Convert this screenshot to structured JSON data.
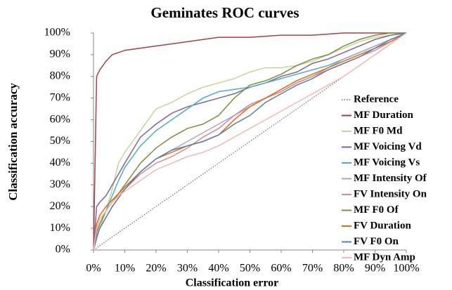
{
  "chart_data": {
    "type": "line",
    "title": "Geminates ROC curves",
    "x_label": "Classification error",
    "y_label": "Classification accuracy",
    "x": [
      0,
      1,
      2,
      4,
      6,
      8,
      10,
      15,
      20,
      25,
      30,
      35,
      40,
      45,
      50,
      55,
      60,
      65,
      70,
      75,
      80,
      85,
      90,
      95,
      100
    ],
    "xlim": [
      0,
      100
    ],
    "ylim": [
      0,
      100
    ],
    "xticks": [
      {
        "value": 0,
        "label": "0%"
      },
      {
        "value": 10,
        "label": "10%"
      },
      {
        "value": 20,
        "label": "20%"
      },
      {
        "value": 30,
        "label": "30%"
      },
      {
        "value": 40,
        "label": "40%"
      },
      {
        "value": 50,
        "label": "50%"
      },
      {
        "value": 60,
        "label": "60%"
      },
      {
        "value": 70,
        "label": "70%"
      },
      {
        "value": 80,
        "label": "80%"
      },
      {
        "value": 90,
        "label": "90%"
      },
      {
        "value": 100,
        "label": "100%"
      }
    ],
    "yticks": [
      {
        "value": 0,
        "label": "0%"
      },
      {
        "value": 10,
        "label": "10%"
      },
      {
        "value": 20,
        "label": "20%"
      },
      {
        "value": 30,
        "label": "30%"
      },
      {
        "value": 40,
        "label": "40%"
      },
      {
        "value": 50,
        "label": "50%"
      },
      {
        "value": 60,
        "label": "60%"
      },
      {
        "value": 70,
        "label": "70%"
      },
      {
        "value": 80,
        "label": "80%"
      },
      {
        "value": 90,
        "label": "90%"
      },
      {
        "value": 100,
        "label": "100%"
      }
    ],
    "grid": false,
    "legend": "right",
    "series": [
      {
        "name": "Reference",
        "color": "#555555",
        "style": "dotted",
        "values": [
          0,
          1,
          2,
          4,
          6,
          8,
          10,
          15,
          20,
          25,
          30,
          35,
          40,
          45,
          50,
          55,
          60,
          65,
          70,
          75,
          80,
          85,
          90,
          95,
          100
        ]
      },
      {
        "name": "MF Duration",
        "color": "#a5404a",
        "values": [
          0,
          80,
          83,
          87,
          90,
          91,
          92,
          93,
          94,
          95,
          96,
          97,
          98,
          98,
          98,
          98.5,
          99,
          99,
          99,
          99.5,
          100,
          100,
          100,
          100,
          100
        ]
      },
      {
        "name": "MF F0 Md",
        "color": "#c3d69b",
        "values": [
          0,
          5,
          10,
          18,
          28,
          40,
          45,
          55,
          65,
          68,
          72,
          75,
          77,
          79,
          82,
          84,
          84,
          85,
          87,
          90,
          93,
          96,
          98,
          99,
          100
        ]
      },
      {
        "name": "MF Voicing Vd",
        "color": "#8064a2",
        "values": [
          0,
          20,
          22,
          25,
          30,
          35,
          40,
          52,
          58,
          63,
          66,
          68,
          70,
          72,
          75,
          77,
          80,
          82,
          86,
          88,
          91,
          94,
          97,
          99,
          100
        ]
      },
      {
        "name": "MF Voicing Vs",
        "color": "#4bacc6",
        "values": [
          0,
          8,
          12,
          18,
          25,
          32,
          38,
          48,
          55,
          60,
          65,
          70,
          73,
          74,
          75,
          77,
          79,
          81,
          83,
          85,
          88,
          91,
          94,
          97,
          100
        ]
      },
      {
        "name": "MF Intensity Of",
        "color": "#b3a2c7",
        "values": [
          0,
          5,
          10,
          15,
          20,
          24,
          28,
          36,
          42,
          46,
          50,
          54,
          58,
          62,
          66,
          70,
          73,
          77,
          80,
          84,
          88,
          91,
          94,
          97,
          100
        ]
      },
      {
        "name": "FV Intensity On",
        "color": "#d98a8a",
        "values": [
          0,
          10,
          14,
          18,
          22,
          25,
          28,
          35,
          40,
          43,
          47,
          52,
          56,
          62,
          67,
          70,
          73,
          77,
          80,
          83,
          86,
          89,
          92,
          96,
          100
        ]
      },
      {
        "name": "MF F0 Of",
        "color": "#77933c",
        "values": [
          0,
          8,
          12,
          18,
          22,
          26,
          30,
          40,
          47,
          52,
          56,
          58,
          62,
          70,
          76,
          78,
          81,
          85,
          88,
          90,
          94,
          97,
          99,
          100,
          100
        ]
      },
      {
        "name": "FV Duration",
        "color": "#e46c0a",
        "values": [
          0,
          12,
          16,
          20,
          23,
          26,
          29,
          36,
          42,
          45,
          48,
          50,
          53,
          60,
          66,
          70,
          74,
          78,
          81,
          84,
          87,
          90,
          93,
          96,
          100
        ]
      },
      {
        "name": "FV F0 On",
        "color": "#4f81bd",
        "values": [
          0,
          6,
          10,
          15,
          20,
          24,
          28,
          36,
          42,
          46,
          48,
          50,
          53,
          58,
          62,
          68,
          72,
          76,
          79,
          83,
          86,
          89,
          93,
          97,
          100
        ]
      },
      {
        "name": "MF Dyn Amp",
        "color": "#f2b8b7",
        "values": [
          0,
          10,
          14,
          18,
          22,
          25,
          27,
          32,
          37,
          40,
          43,
          45,
          48,
          52,
          56,
          60,
          64,
          68,
          72,
          76,
          80,
          85,
          90,
          95,
          100
        ]
      }
    ]
  }
}
